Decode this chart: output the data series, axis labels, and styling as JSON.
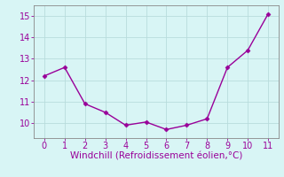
{
  "x": [
    0,
    1,
    2,
    3,
    4,
    5,
    6,
    7,
    8,
    9,
    10,
    11
  ],
  "y": [
    12.2,
    12.6,
    10.9,
    10.5,
    9.9,
    10.05,
    9.7,
    9.9,
    10.2,
    12.6,
    13.4,
    15.1
  ],
  "line_color": "#990099",
  "marker": "D",
  "marker_size": 2.5,
  "linewidth": 1.0,
  "xlabel": "Windchill (Refroidissement éolien,°C)",
  "xlabel_fontsize": 7.5,
  "xlim": [
    -0.5,
    11.5
  ],
  "ylim": [
    9.3,
    15.5
  ],
  "yticks": [
    10,
    11,
    12,
    13,
    14,
    15
  ],
  "xticks": [
    0,
    1,
    2,
    3,
    4,
    5,
    6,
    7,
    8,
    9,
    10,
    11
  ],
  "background_color": "#d8f5f5",
  "grid_color": "#b8dcdc",
  "tick_color": "#990099",
  "tick_fontsize": 7,
  "spine_color": "#888888"
}
